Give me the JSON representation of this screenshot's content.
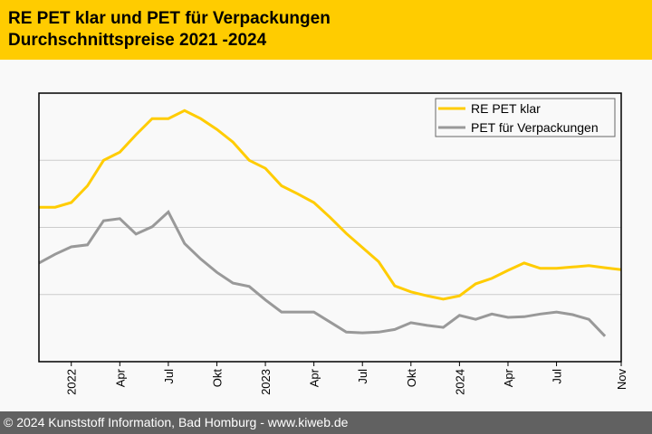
{
  "header": {
    "title_line1": "RE PET klar und PET für Verpackungen",
    "title_line2": "Durchschnittspreise 2021 -2024"
  },
  "footer": {
    "copyright": "© 2024 Kunststoff Information, Bad Homburg - www.kiweb.de"
  },
  "colors": {
    "header_bg": "#ffcc00",
    "footer_bg": "#616161",
    "series_re_pet": "#ffcc00",
    "series_pet": "#999999",
    "gridline": "#cccccc"
  },
  "chart_data": {
    "type": "line",
    "title": "RE PET klar und PET für Verpackungen Durchschnittspreise 2021 -2024",
    "xlabel": "",
    "ylabel": "",
    "y_tick_labels_shown": false,
    "y_units": "relative index (gridlines at 1, 2, 3; no axis labels shown)",
    "ylim": [
      0,
      4
    ],
    "y_gridlines": [
      1,
      2,
      3
    ],
    "grid": true,
    "legend_position": "top-right",
    "x_start": "2021-11",
    "x_end": "2024-11",
    "x_ticks": [
      {
        "label": "2022",
        "month_index": 2
      },
      {
        "label": "Apr",
        "month_index": 5
      },
      {
        "label": "Jul",
        "month_index": 8
      },
      {
        "label": "Okt",
        "month_index": 11
      },
      {
        "label": "2023",
        "month_index": 14
      },
      {
        "label": "Apr",
        "month_index": 17
      },
      {
        "label": "Jul",
        "month_index": 20
      },
      {
        "label": "Okt",
        "month_index": 23
      },
      {
        "label": "2024",
        "month_index": 26
      },
      {
        "label": "Apr",
        "month_index": 29
      },
      {
        "label": "Jul",
        "month_index": 32
      },
      {
        "label": "Nov",
        "month_index": 36
      }
    ],
    "series": [
      {
        "name": "RE PET klar",
        "color": "#ffcc00",
        "values": [
          2.3,
          2.3,
          2.37,
          2.62,
          3.0,
          3.12,
          3.38,
          3.62,
          3.62,
          3.74,
          3.62,
          3.46,
          3.27,
          3.0,
          2.88,
          2.62,
          2.5,
          2.37,
          2.15,
          1.91,
          1.7,
          1.49,
          1.13,
          1.04,
          0.98,
          0.93,
          0.98,
          1.16,
          1.24,
          1.36,
          1.47,
          1.39,
          1.39,
          1.41,
          1.43,
          1.4,
          1.37
        ]
      },
      {
        "name": "PET für Verpackungen",
        "color": "#999999",
        "values": [
          1.47,
          1.6,
          1.71,
          1.74,
          2.1,
          2.13,
          1.9,
          2.01,
          2.23,
          1.76,
          1.53,
          1.33,
          1.17,
          1.12,
          0.92,
          0.74,
          0.74,
          0.74,
          0.59,
          0.44,
          0.43,
          0.44,
          0.48,
          0.58,
          0.54,
          0.51,
          0.69,
          0.63,
          0.71,
          0.66,
          0.67,
          0.71,
          0.74,
          0.7,
          0.63,
          0.38
        ]
      }
    ]
  }
}
